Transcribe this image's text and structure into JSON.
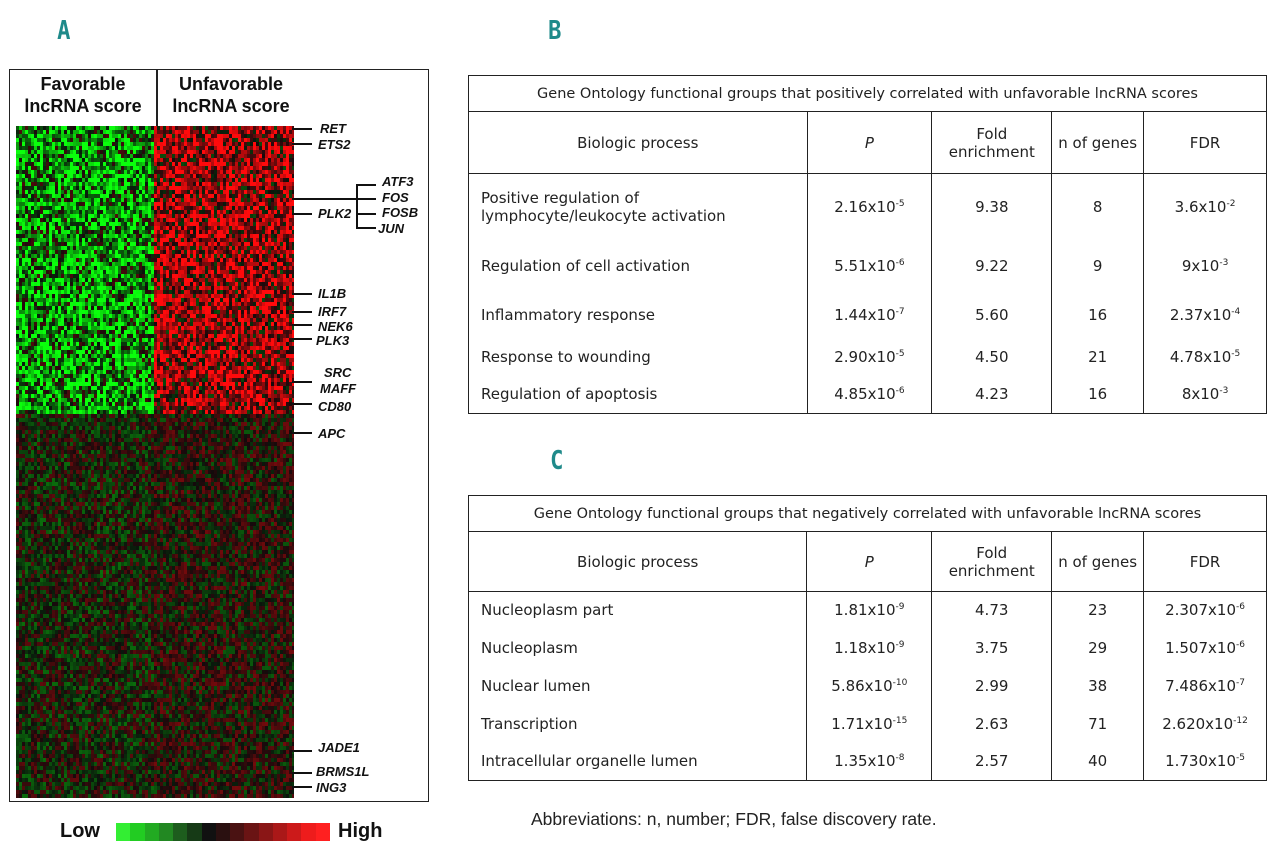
{
  "panels": {
    "a": "A",
    "b": "B",
    "c": "C"
  },
  "heatmap": {
    "col_favorable": "Favorable lncRNA score",
    "col_unfavorable": "Unfavorable lncRNA score",
    "genes": [
      "RET",
      "ETS2",
      "ATF3",
      "FOS",
      "PLK2",
      "FOSB",
      "JUN",
      "IL1B",
      "IRF7",
      "NEK6",
      "PLK3",
      "SRC",
      "MAFF",
      "CD80",
      "APC",
      "JADE1",
      "BRMS1L",
      "ING3"
    ],
    "scale_low": "Low",
    "scale_high": "High",
    "scale_colors": [
      "#33ee33",
      "#22cc22",
      "#22aa22",
      "#228822",
      "#1d5d1d",
      "#163a16",
      "#111111",
      "#2a1010",
      "#4a1212",
      "#6a1414",
      "#8a1616",
      "#aa1818",
      "#cc1a1a",
      "#ee1c1c",
      "#ff2020"
    ]
  },
  "table_b": {
    "title": "Gene Ontology functional groups that positively correlated with unfavorable lncRNA scores",
    "headers": [
      "Biologic process",
      "P",
      "Fold enrichment",
      "n of genes",
      "FDR"
    ],
    "rows": [
      {
        "process": "Positive regulation of lymphocyte/leukocyte activation",
        "p_base": "2.16x10",
        "p_exp": "-5",
        "fold": "9.38",
        "n": "8",
        "fdr_base": "3.6x10",
        "fdr_exp": "-2"
      },
      {
        "process": "Regulation of cell activation",
        "p_base": "5.51x10",
        "p_exp": "-6",
        "fold": "9.22",
        "n": "9",
        "fdr_base": "9x10",
        "fdr_exp": "-3"
      },
      {
        "process": "Inflammatory response",
        "p_base": "1.44x10",
        "p_exp": "-7",
        "fold": "5.60",
        "n": "16",
        "fdr_base": "2.37x10",
        "fdr_exp": "-4"
      },
      {
        "process": "Response to wounding",
        "p_base": "2.90x10",
        "p_exp": "-5",
        "fold": "4.50",
        "n": "21",
        "fdr_base": "4.78x10",
        "fdr_exp": "-5"
      },
      {
        "process": "Regulation of apoptosis",
        "p_base": "4.85x10",
        "p_exp": "-6",
        "fold": "4.23",
        "n": "16",
        "fdr_base": "8x10",
        "fdr_exp": "-3"
      }
    ]
  },
  "table_c": {
    "title": "Gene Ontology functional groups  that negatively correlated with unfavorable lncRNA scores",
    "headers": [
      "Biologic process",
      "P",
      "Fold enrichment",
      "n of genes",
      "FDR"
    ],
    "rows": [
      {
        "process": "Nucleoplasm part",
        "p_base": "1.81x10",
        "p_exp": "-9",
        "fold": "4.73",
        "n": "23",
        "fdr_base": "2.307x10",
        "fdr_exp": "-6"
      },
      {
        "process": "Nucleoplasm",
        "p_base": "1.18x10",
        "p_exp": "-9",
        "fold": "3.75",
        "n": "29",
        "fdr_base": "1.507x10",
        "fdr_exp": "-6"
      },
      {
        "process": "Nuclear lumen",
        "p_base": "5.86x10",
        "p_exp": "-10",
        "fold": "2.99",
        "n": "38",
        "fdr_base": "7.486x10",
        "fdr_exp": "-7"
      },
      {
        "process": "Transcription",
        "p_base": "1.71x10",
        "p_exp": "-15",
        "fold": "2.63",
        "n": "71",
        "fdr_base": "2.620x10",
        "fdr_exp": "-12"
      },
      {
        "process": "Intracellular organelle lumen",
        "p_base": "1.35x10",
        "p_exp": "-8",
        "fold": "2.57",
        "n": "40",
        "fdr_base": "1.730x10",
        "fdr_exp": "-5"
      }
    ]
  },
  "abbreviations": "Abbreviations: n, number; FDR, false discovery rate."
}
